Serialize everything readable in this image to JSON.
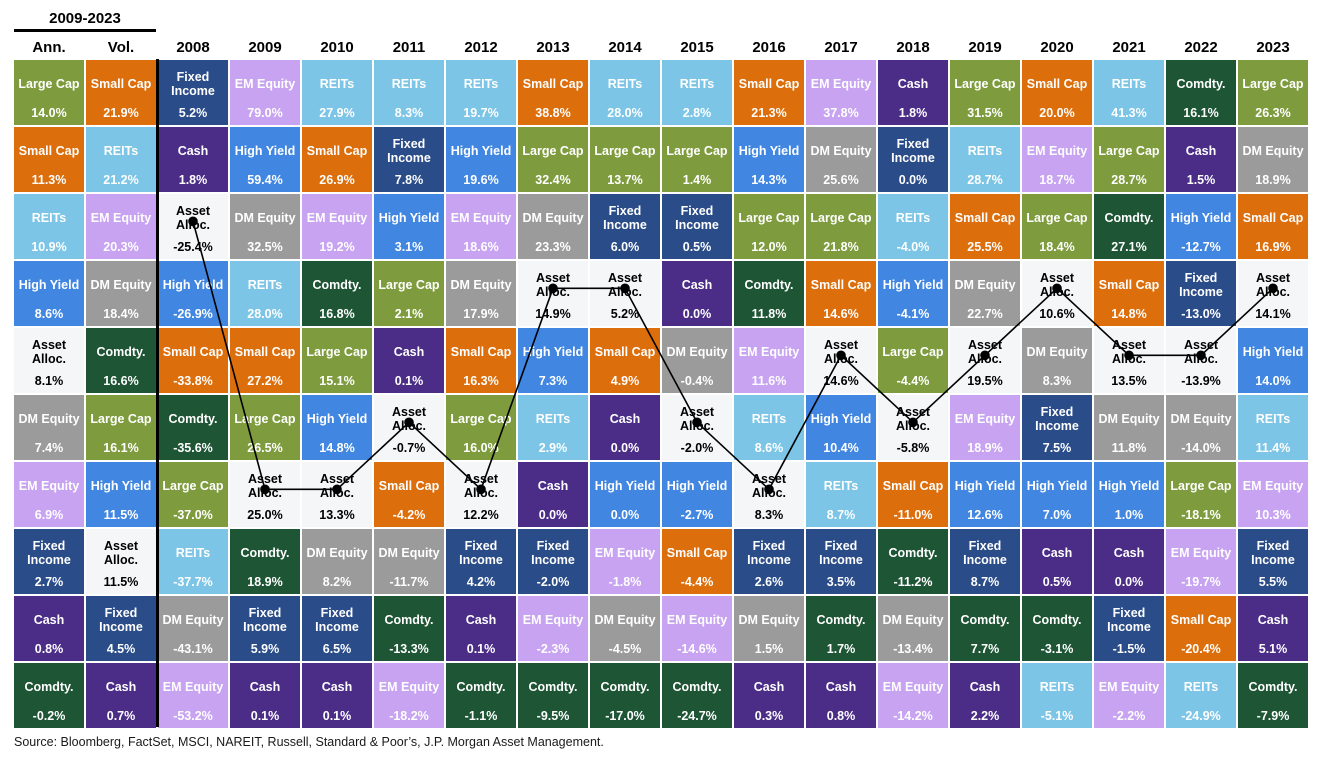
{
  "header": {
    "range_label": "2009-2023",
    "ann_label": "Ann.",
    "vol_label": "Vol.",
    "years": [
      "2008",
      "2009",
      "2010",
      "2011",
      "2012",
      "2013",
      "2014",
      "2015",
      "2016",
      "2017",
      "2018",
      "2019",
      "2020",
      "2021",
      "2022",
      "2023"
    ]
  },
  "assets": {
    "LC": {
      "label": "Large Cap",
      "bg": "#7e9c3e",
      "fg": "#ffffff"
    },
    "SC": {
      "label": "Small Cap",
      "bg": "#dd6e0c",
      "fg": "#ffffff"
    },
    "RE": {
      "label": "REITs",
      "bg": "#7cc5e6",
      "fg": "#ffffff"
    },
    "EM": {
      "label": "EM Equity",
      "bg": "#c7a3f2",
      "fg": "#ffffff"
    },
    "DM": {
      "label": "DM Equity",
      "bg": "#9b9b9b",
      "fg": "#ffffff"
    },
    "FI": {
      "label": "Fixed Income",
      "bg": "#2a4c88",
      "fg": "#ffffff"
    },
    "HY": {
      "label": "High Yield",
      "bg": "#4186e0",
      "fg": "#ffffff"
    },
    "AA": {
      "label": "Asset Alloc.",
      "bg": "#f4f6f8",
      "fg": "#000000"
    },
    "CA": {
      "label": "Cash",
      "bg": "#4b2d87",
      "fg": "#ffffff"
    },
    "CO": {
      "label": "Comdty.",
      "bg": "#1e5535",
      "fg": "#ffffff"
    }
  },
  "chart_data": {
    "type": "table",
    "title": "Asset class returns quilt, 2008-2023 with 2009-2023 annualized return and volatility",
    "columns": [
      "Ann.",
      "Vol.",
      "2008",
      "2009",
      "2010",
      "2011",
      "2012",
      "2013",
      "2014",
      "2015",
      "2016",
      "2017",
      "2018",
      "2019",
      "2020",
      "2021",
      "2022",
      "2023"
    ],
    "line_overlay_asset": "AA",
    "line_color": "#000000",
    "rows": [
      [
        [
          "LC",
          "14.0%"
        ],
        [
          "SC",
          "21.9%"
        ],
        [
          "FI",
          "5.2%"
        ],
        [
          "EM",
          "79.0%"
        ],
        [
          "RE",
          "27.9%"
        ],
        [
          "RE",
          "8.3%"
        ],
        [
          "RE",
          "19.7%"
        ],
        [
          "SC",
          "38.8%"
        ],
        [
          "RE",
          "28.0%"
        ],
        [
          "RE",
          "2.8%"
        ],
        [
          "SC",
          "21.3%"
        ],
        [
          "EM",
          "37.8%"
        ],
        [
          "CA",
          "1.8%"
        ],
        [
          "LC",
          "31.5%"
        ],
        [
          "SC",
          "20.0%"
        ],
        [
          "RE",
          "41.3%"
        ],
        [
          "CO",
          "16.1%"
        ],
        [
          "LC",
          "26.3%"
        ]
      ],
      [
        [
          "SC",
          "11.3%"
        ],
        [
          "RE",
          "21.2%"
        ],
        [
          "CA",
          "1.8%"
        ],
        [
          "HY",
          "59.4%"
        ],
        [
          "SC",
          "26.9%"
        ],
        [
          "FI",
          "7.8%"
        ],
        [
          "HY",
          "19.6%"
        ],
        [
          "LC",
          "32.4%"
        ],
        [
          "LC",
          "13.7%"
        ],
        [
          "LC",
          "1.4%"
        ],
        [
          "HY",
          "14.3%"
        ],
        [
          "DM",
          "25.6%"
        ],
        [
          "FI",
          "0.0%"
        ],
        [
          "RE",
          "28.7%"
        ],
        [
          "EM",
          "18.7%"
        ],
        [
          "LC",
          "28.7%"
        ],
        [
          "CA",
          "1.5%"
        ],
        [
          "DM",
          "18.9%"
        ]
      ],
      [
        [
          "RE",
          "10.9%"
        ],
        [
          "EM",
          "20.3%"
        ],
        [
          "AA",
          "-25.4%"
        ],
        [
          "DM",
          "32.5%"
        ],
        [
          "EM",
          "19.2%"
        ],
        [
          "HY",
          "3.1%"
        ],
        [
          "EM",
          "18.6%"
        ],
        [
          "DM",
          "23.3%"
        ],
        [
          "FI",
          "6.0%"
        ],
        [
          "FI",
          "0.5%"
        ],
        [
          "LC",
          "12.0%"
        ],
        [
          "LC",
          "21.8%"
        ],
        [
          "RE",
          "-4.0%"
        ],
        [
          "SC",
          "25.5%"
        ],
        [
          "LC",
          "18.4%"
        ],
        [
          "CO",
          "27.1%"
        ],
        [
          "HY",
          "-12.7%"
        ],
        [
          "SC",
          "16.9%"
        ]
      ],
      [
        [
          "HY",
          "8.6%"
        ],
        [
          "DM",
          "18.4%"
        ],
        [
          "HY",
          "-26.9%"
        ],
        [
          "RE",
          "28.0%"
        ],
        [
          "CO",
          "16.8%"
        ],
        [
          "LC",
          "2.1%"
        ],
        [
          "DM",
          "17.9%"
        ],
        [
          "AA",
          "14.9%"
        ],
        [
          "AA",
          "5.2%"
        ],
        [
          "CA",
          "0.0%"
        ],
        [
          "CO",
          "11.8%"
        ],
        [
          "SC",
          "14.6%"
        ],
        [
          "HY",
          "-4.1%"
        ],
        [
          "DM",
          "22.7%"
        ],
        [
          "AA",
          "10.6%"
        ],
        [
          "SC",
          "14.8%"
        ],
        [
          "FI",
          "-13.0%"
        ],
        [
          "AA",
          "14.1%"
        ]
      ],
      [
        [
          "AA",
          "8.1%"
        ],
        [
          "CO",
          "16.6%"
        ],
        [
          "SC",
          "-33.8%"
        ],
        [
          "SC",
          "27.2%"
        ],
        [
          "LC",
          "15.1%"
        ],
        [
          "CA",
          "0.1%"
        ],
        [
          "SC",
          "16.3%"
        ],
        [
          "HY",
          "7.3%"
        ],
        [
          "SC",
          "4.9%"
        ],
        [
          "DM",
          "-0.4%"
        ],
        [
          "EM",
          "11.6%"
        ],
        [
          "AA",
          "14.6%"
        ],
        [
          "LC",
          "-4.4%"
        ],
        [
          "AA",
          "19.5%"
        ],
        [
          "DM",
          "8.3%"
        ],
        [
          "AA",
          "13.5%"
        ],
        [
          "AA",
          "-13.9%"
        ],
        [
          "HY",
          "14.0%"
        ]
      ],
      [
        [
          "DM",
          "7.4%"
        ],
        [
          "LC",
          "16.1%"
        ],
        [
          "CO",
          "-35.6%"
        ],
        [
          "LC",
          "26.5%"
        ],
        [
          "HY",
          "14.8%"
        ],
        [
          "AA",
          "-0.7%"
        ],
        [
          "LC",
          "16.0%"
        ],
        [
          "RE",
          "2.9%"
        ],
        [
          "CA",
          "0.0%"
        ],
        [
          "AA",
          "-2.0%"
        ],
        [
          "RE",
          "8.6%"
        ],
        [
          "HY",
          "10.4%"
        ],
        [
          "AA",
          "-5.8%"
        ],
        [
          "EM",
          "18.9%"
        ],
        [
          "FI",
          "7.5%"
        ],
        [
          "DM",
          "11.8%"
        ],
        [
          "DM",
          "-14.0%"
        ],
        [
          "RE",
          "11.4%"
        ]
      ],
      [
        [
          "EM",
          "6.9%"
        ],
        [
          "HY",
          "11.5%"
        ],
        [
          "LC",
          "-37.0%"
        ],
        [
          "AA",
          "25.0%"
        ],
        [
          "AA",
          "13.3%"
        ],
        [
          "SC",
          "-4.2%"
        ],
        [
          "AA",
          "12.2%"
        ],
        [
          "CA",
          "0.0%"
        ],
        [
          "HY",
          "0.0%"
        ],
        [
          "HY",
          "-2.7%"
        ],
        [
          "AA",
          "8.3%"
        ],
        [
          "RE",
          "8.7%"
        ],
        [
          "SC",
          "-11.0%"
        ],
        [
          "HY",
          "12.6%"
        ],
        [
          "HY",
          "7.0%"
        ],
        [
          "HY",
          "1.0%"
        ],
        [
          "LC",
          "-18.1%"
        ],
        [
          "EM",
          "10.3%"
        ]
      ],
      [
        [
          "FI",
          "2.7%"
        ],
        [
          "AA",
          "11.5%"
        ],
        [
          "RE",
          "-37.7%"
        ],
        [
          "CO",
          "18.9%"
        ],
        [
          "DM",
          "8.2%"
        ],
        [
          "DM",
          "-11.7%"
        ],
        [
          "FI",
          "4.2%"
        ],
        [
          "FI",
          "-2.0%"
        ],
        [
          "EM",
          "-1.8%"
        ],
        [
          "SC",
          "-4.4%"
        ],
        [
          "FI",
          "2.6%"
        ],
        [
          "FI",
          "3.5%"
        ],
        [
          "CO",
          "-11.2%"
        ],
        [
          "FI",
          "8.7%"
        ],
        [
          "CA",
          "0.5%"
        ],
        [
          "CA",
          "0.0%"
        ],
        [
          "EM",
          "-19.7%"
        ],
        [
          "FI",
          "5.5%"
        ]
      ],
      [
        [
          "CA",
          "0.8%"
        ],
        [
          "FI",
          "4.5%"
        ],
        [
          "DM",
          "-43.1%"
        ],
        [
          "FI",
          "5.9%"
        ],
        [
          "FI",
          "6.5%"
        ],
        [
          "CO",
          "-13.3%"
        ],
        [
          "CA",
          "0.1%"
        ],
        [
          "EM",
          "-2.3%"
        ],
        [
          "DM",
          "-4.5%"
        ],
        [
          "EM",
          "-14.6%"
        ],
        [
          "DM",
          "1.5%"
        ],
        [
          "CO",
          "1.7%"
        ],
        [
          "DM",
          "-13.4%"
        ],
        [
          "CO",
          "7.7%"
        ],
        [
          "CO",
          "-3.1%"
        ],
        [
          "FI",
          "-1.5%"
        ],
        [
          "SC",
          "-20.4%"
        ],
        [
          "CA",
          "5.1%"
        ]
      ],
      [
        [
          "CO",
          "-0.2%"
        ],
        [
          "CA",
          "0.7%"
        ],
        [
          "EM",
          "-53.2%"
        ],
        [
          "CA",
          "0.1%"
        ],
        [
          "CA",
          "0.1%"
        ],
        [
          "EM",
          "-18.2%"
        ],
        [
          "CO",
          "-1.1%"
        ],
        [
          "CO",
          "-9.5%"
        ],
        [
          "CO",
          "-17.0%"
        ],
        [
          "CO",
          "-24.7%"
        ],
        [
          "CA",
          "0.3%"
        ],
        [
          "CA",
          "0.8%"
        ],
        [
          "EM",
          "-14.2%"
        ],
        [
          "CA",
          "2.2%"
        ],
        [
          "RE",
          "-5.1%"
        ],
        [
          "EM",
          "-2.2%"
        ],
        [
          "RE",
          "-24.9%"
        ],
        [
          "CO",
          "-7.9%"
        ]
      ]
    ]
  },
  "source": "Source: Bloomberg, FactSet, MSCI, NAREIT, Russell, Standard & Poor’s, J.P. Morgan Asset Management."
}
